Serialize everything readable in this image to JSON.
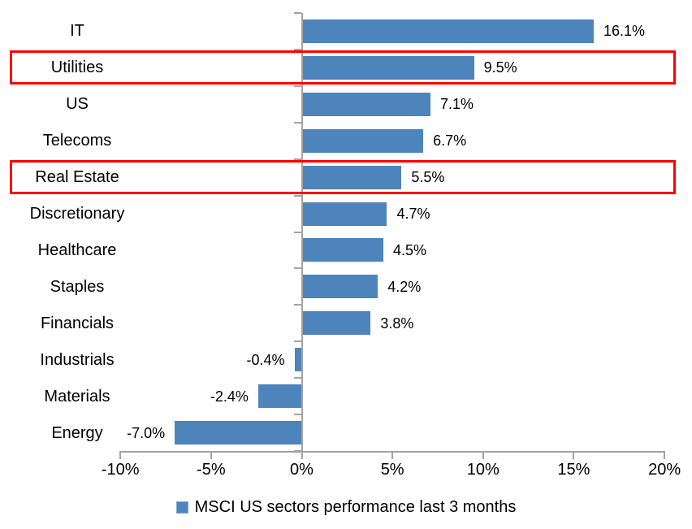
{
  "chart_data": {
    "type": "bar",
    "orientation": "horizontal",
    "title": "",
    "categories": [
      "IT",
      "Utilities",
      "US",
      "Telecoms",
      "Real Estate",
      "Discretionary",
      "Healthcare",
      "Staples",
      "Financials",
      "Industrials",
      "Materials",
      "Energy"
    ],
    "values": [
      16.1,
      9.5,
      7.1,
      6.7,
      5.5,
      4.7,
      4.5,
      4.2,
      3.8,
      -0.4,
      -2.4,
      -7.0
    ],
    "data_labels": [
      "16.1%",
      "9.5%",
      "7.1%",
      "6.7%",
      "5.5%",
      "4.7%",
      "4.5%",
      "4.2%",
      "3.8%",
      "-0.4%",
      "-2.4%",
      "-7.0%"
    ],
    "x_tick_labels": [
      "-10%",
      "-5%",
      "0%",
      "5%",
      "10%",
      "15%",
      "20%"
    ],
    "x_tick_values": [
      -10,
      -5,
      0,
      5,
      10,
      15,
      20
    ],
    "xlim": [
      -10,
      20
    ],
    "grid": false,
    "legend_position": "bottom",
    "series": [
      {
        "name": "MSCI US sectors performance last 3 months",
        "color": "#4e84bc"
      }
    ],
    "highlighted_categories": [
      "Utilities",
      "Real Estate"
    ],
    "highlight_color": "#ff0000",
    "axis_color": "#a3a3a3"
  },
  "legend": {
    "label": "MSCI US sectors performance last 3 months",
    "marker_color": "#4e84bc"
  }
}
